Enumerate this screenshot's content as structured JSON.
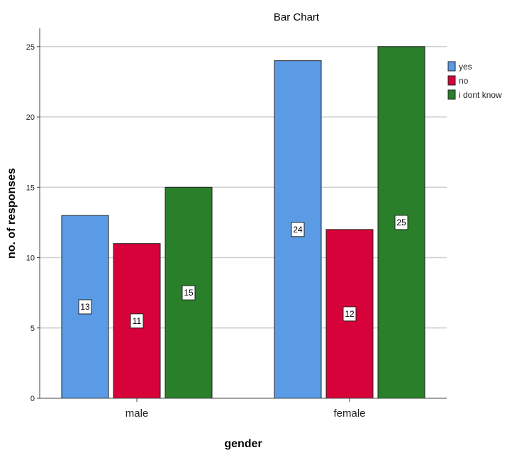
{
  "chart_data": {
    "type": "bar",
    "title": "Bar Chart",
    "xlabel": "gender",
    "ylabel": "no. of responses",
    "categories": [
      "male",
      "female"
    ],
    "series": [
      {
        "name": "yes",
        "values": [
          13,
          24
        ],
        "color": "#5b9be6"
      },
      {
        "name": "no",
        "values": [
          11,
          12
        ],
        "color": "#d8023a"
      },
      {
        "name": "i dont know",
        "values": [
          15,
          25
        ],
        "color": "#2a7f2a"
      }
    ],
    "ylim": [
      0,
      26.3
    ],
    "yticks": [
      "0",
      "5",
      "10",
      "15",
      "20",
      "25"
    ],
    "grid": true,
    "legend": "top-right",
    "data_labels": true
  }
}
